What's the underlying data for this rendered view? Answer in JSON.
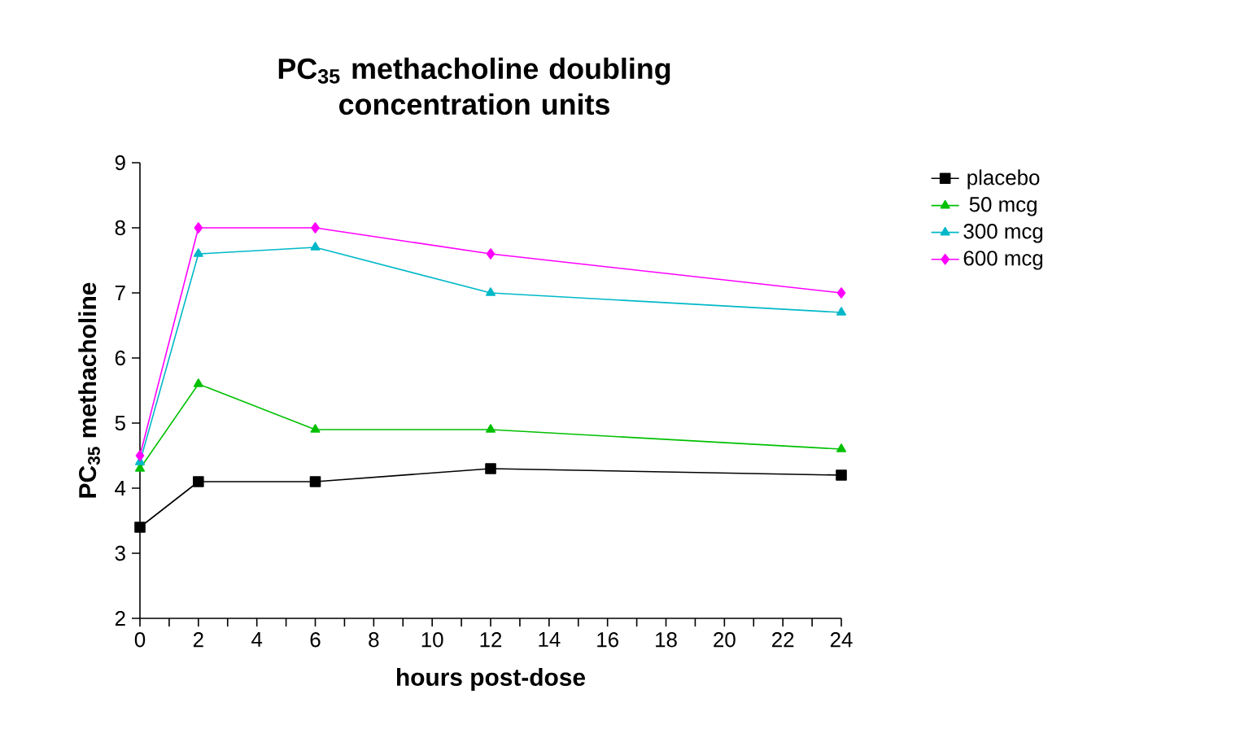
{
  "chart_data": {
    "type": "line",
    "title": "PC$_{35}$ methacholine doubling concentration units",
    "xlabel": "hours post-dose",
    "ylabel": "PC$_{35}$ methacholine",
    "x": [
      0,
      2,
      6,
      12,
      24
    ],
    "series": [
      {
        "name": "placebo",
        "color": "#000000",
        "marker": "square",
        "values": [
          3.4,
          4.1,
          4.1,
          4.3,
          4.2
        ]
      },
      {
        "name": "50 mcg",
        "color": "#00c000",
        "marker": "triangle",
        "values": [
          4.3,
          5.6,
          4.9,
          4.9,
          4.6
        ]
      },
      {
        "name": "300 mcg",
        "color": "#00b8c8",
        "marker": "triangle",
        "values": [
          4.4,
          7.6,
          7.7,
          7.0,
          6.7
        ]
      },
      {
        "name": "600 mcg",
        "color": "#ff00ff",
        "marker": "diamond",
        "values": [
          4.5,
          8.0,
          8.0,
          7.6,
          7.0
        ]
      }
    ],
    "xlim": [
      0,
      24
    ],
    "ylim": [
      2,
      9
    ],
    "xticks": [
      0,
      {
        "value": 1,
        "label": null
      },
      2,
      {
        "value": 3,
        "label": null
      },
      4,
      {
        "value": 5,
        "label": null
      },
      6,
      {
        "value": 7,
        "label": null
      },
      8,
      {
        "value": 9,
        "label": null
      },
      10,
      {
        "value": 11,
        "label": null
      },
      12,
      {
        "value": 13,
        "label": null
      },
      14,
      {
        "value": 15,
        "label": null
      },
      16,
      {
        "value": 17,
        "label": null
      },
      18,
      {
        "value": 19,
        "label": null
      },
      20,
      {
        "value": 21,
        "label": null
      },
      22,
      {
        "value": 23,
        "label": null
      },
      24
    ],
    "yticks": [
      2,
      3,
      4,
      5,
      6,
      7,
      8,
      9
    ],
    "grid": false,
    "legend": "right",
    "line_style": "solid"
  }
}
